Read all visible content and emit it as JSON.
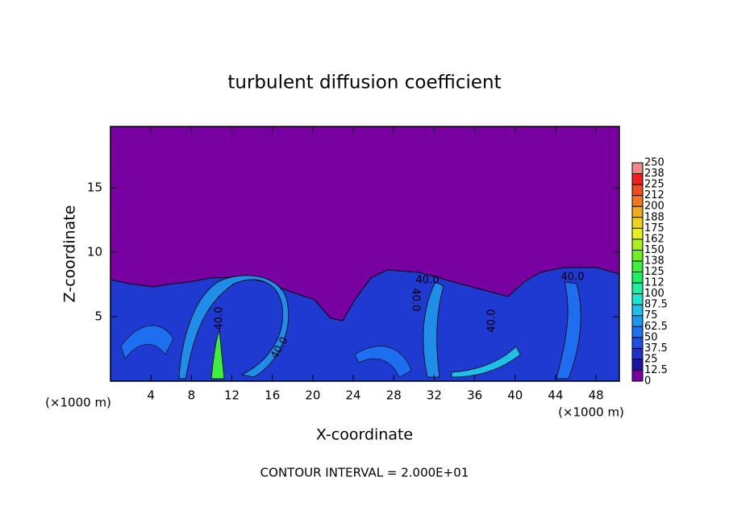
{
  "chart_data": {
    "type": "contour",
    "title": "turbulent diffusion coefficient",
    "x_label": "X-coordinate",
    "y_label": "Z-coordinate",
    "x_unit": "(×1000 m)",
    "footer": "CONTOUR INTERVAL = 2.000E+01",
    "xlim": [
      0,
      50.3
    ],
    "xticks": [
      4,
      8,
      12,
      16,
      20,
      24,
      28,
      32,
      36,
      40,
      44,
      48
    ],
    "ylim": [
      0,
      19.75
    ],
    "yticks": [
      5,
      10,
      15
    ],
    "annotations": [
      "40.0",
      "40.0",
      "40.0",
      "40.0",
      "40.0",
      "40.0"
    ],
    "colorbar": {
      "levels": [
        0,
        12.5,
        25,
        37.5,
        50,
        62.5,
        75,
        87.5,
        100,
        112,
        125,
        138,
        150,
        162,
        175,
        188,
        200,
        212,
        225,
        238,
        250
      ],
      "colors": [
        "#7800a0",
        "#1c14a4",
        "#1e32c8",
        "#1e50e6",
        "#1e6ef0",
        "#1e96f0",
        "#1ec0e8",
        "#1ee6d0",
        "#1ef0a0",
        "#1ef064",
        "#3cf03c",
        "#6ef01e",
        "#a8f01e",
        "#e6f01e",
        "#f0d21e",
        "#f0aa1e",
        "#f0781e",
        "#f04a1e",
        "#f01e1e",
        "#f08888"
      ]
    }
  }
}
